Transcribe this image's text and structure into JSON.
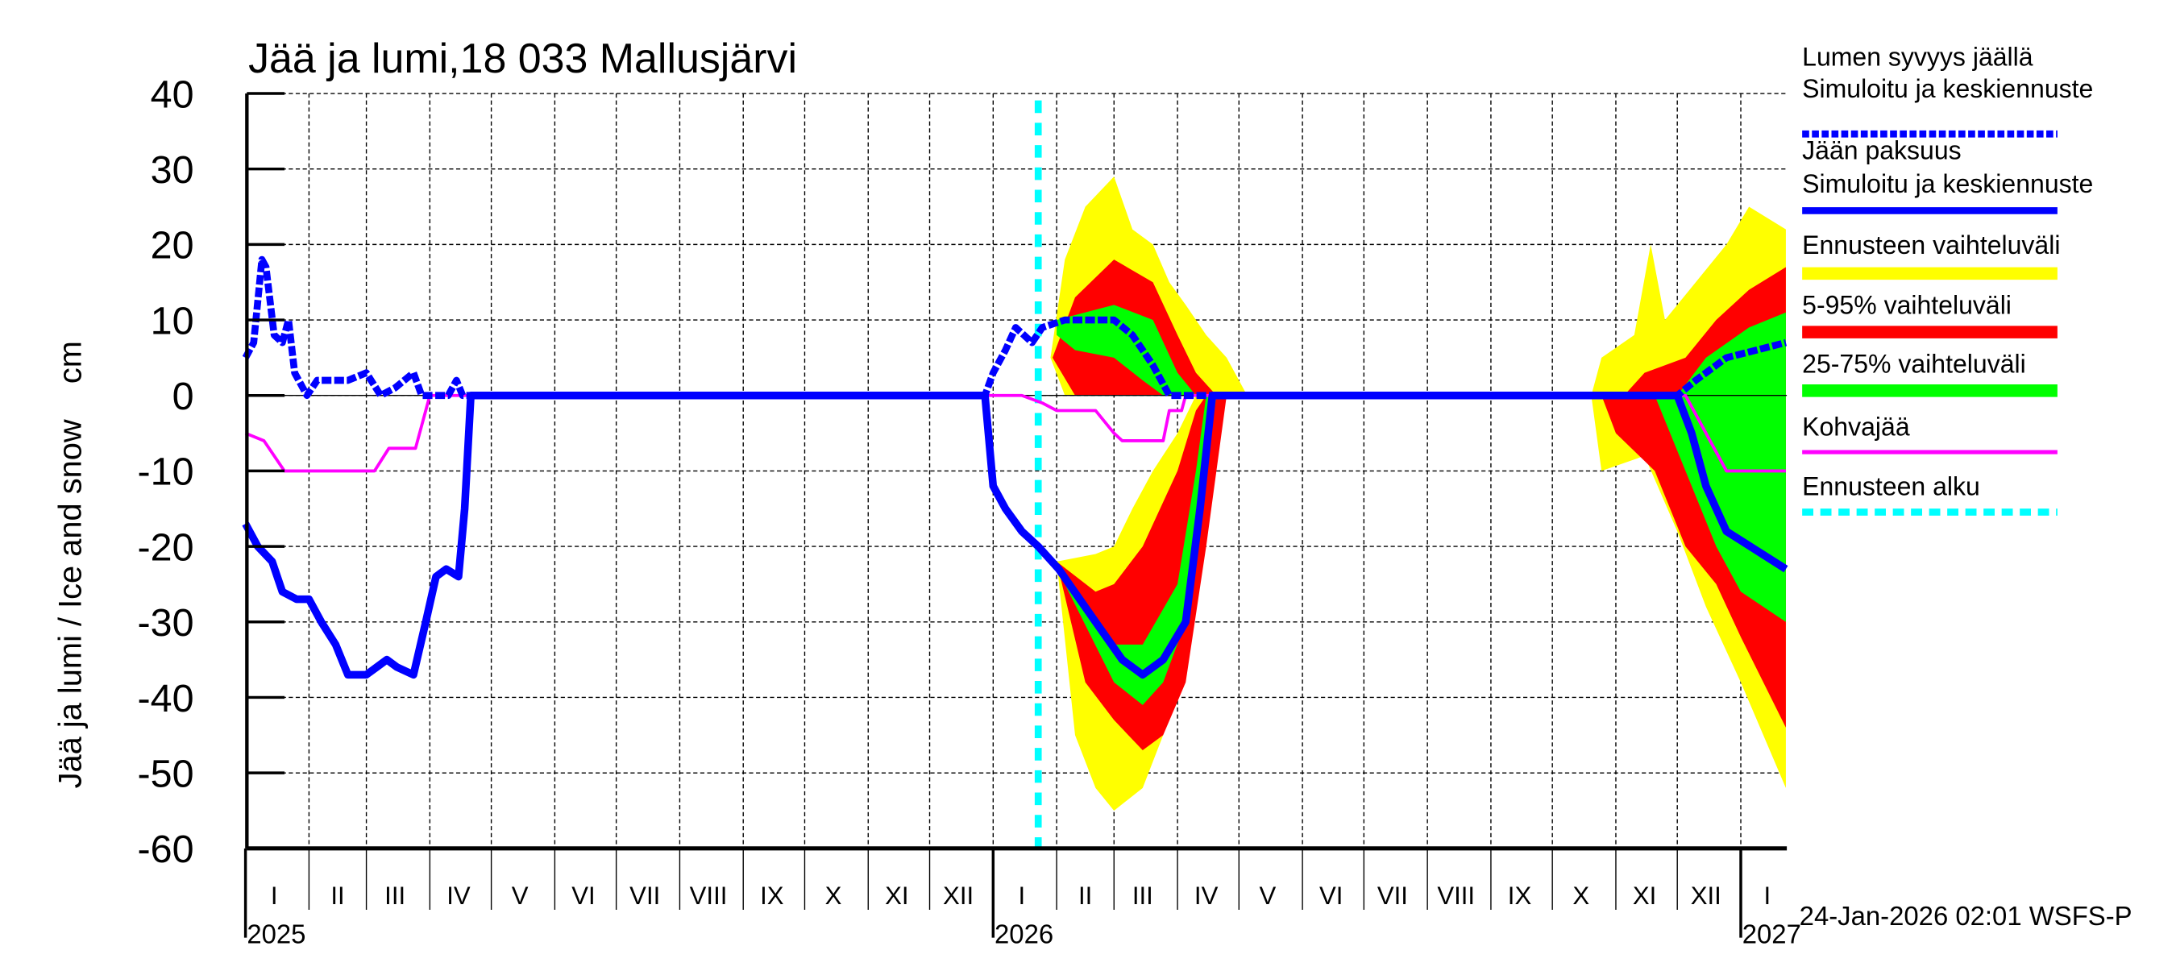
{
  "chart_data": {
    "type": "area",
    "title": "Jää ja lumi,18 033 Mallusjärvi",
    "ylabel": "Jää ja lumi / Ice and snow    cm",
    "ylim": [
      -60,
      40
    ],
    "yticks": [
      40,
      30,
      20,
      10,
      0,
      -10,
      -20,
      -30,
      -40,
      -50,
      -60
    ],
    "xlim": [
      "2025-01-01",
      "2027-01-23"
    ],
    "grid": true,
    "legend_position": "right",
    "months": [
      "I",
      "II",
      "III",
      "IV",
      "V",
      "VI",
      "VII",
      "VIII",
      "IX",
      "X",
      "XI",
      "XII"
    ],
    "year_labels": [
      "2025",
      "2026",
      "2027"
    ],
    "footer": "24-Jan-2026 02:01 WSFS-P",
    "forecast_start": "2026-01-23",
    "legend": [
      {
        "label1": "Lumen syvyys jäällä",
        "label2": "Simuloitu ja keskiennuste",
        "color": "#0000ff",
        "style": "dashed"
      },
      {
        "label1": "Jään paksuus",
        "label2": "Simuloitu ja keskiennuste",
        "color": "#0000ff",
        "style": "solid"
      },
      {
        "label1": "Ennusteen vaihteluväli",
        "color": "#ffff00",
        "style": "band"
      },
      {
        "label1": "5-95% vaihteluväli",
        "color": "#ff0000",
        "style": "band"
      },
      {
        "label1": "25-75% vaihteluväli",
        "color": "#00ff00",
        "style": "band"
      },
      {
        "label1": "Kohvajää",
        "color": "#ff00ff",
        "style": "thin"
      },
      {
        "label1": "Ennusteen alku",
        "color": "#00ffff",
        "style": "dashed"
      }
    ],
    "bands": [
      {
        "name": "Ennusteen vaihteluväli",
        "color": "#ffff00",
        "polygons": [
          {
            "upper": [
              [
                "2026-01-29",
                5
              ],
              [
                "2026-02-05",
                18
              ],
              [
                "2026-02-15",
                25
              ],
              [
                "2026-03-01",
                29
              ],
              [
                "2026-03-10",
                22
              ],
              [
                "2026-03-20",
                20
              ],
              [
                "2026-03-28",
                15
              ],
              [
                "2026-04-05",
                12
              ],
              [
                "2026-04-15",
                8
              ],
              [
                "2026-04-25",
                5
              ],
              [
                "2026-05-05",
                0
              ]
            ],
            "lower": [
              [
                "2026-01-29",
                5
              ],
              [
                "2026-02-05",
                0
              ],
              [
                "2026-05-05",
                0
              ]
            ]
          },
          {
            "upper": [
              [
                "2026-02-01",
                -22
              ],
              [
                "2026-02-20",
                -21
              ],
              [
                "2026-03-01",
                -20
              ],
              [
                "2026-03-10",
                -15
              ],
              [
                "2026-03-20",
                -10
              ],
              [
                "2026-04-01",
                -5
              ],
              [
                "2026-04-10",
                0
              ],
              [
                "2026-05-05",
                0
              ]
            ],
            "lower": [
              [
                "2026-02-01",
                -22
              ],
              [
                "2026-02-10",
                -45
              ],
              [
                "2026-02-20",
                -52
              ],
              [
                "2026-03-01",
                -55
              ],
              [
                "2026-03-15",
                -52
              ],
              [
                "2026-03-25",
                -45
              ],
              [
                "2026-04-05",
                -35
              ],
              [
                "2026-04-15",
                -15
              ],
              [
                "2026-04-25",
                0
              ],
              [
                "2026-05-05",
                0
              ]
            ]
          },
          {
            "upper": [
              [
                "2026-10-20",
                0
              ],
              [
                "2026-10-25",
                5
              ],
              [
                "2026-11-10",
                8
              ],
              [
                "2026-11-18",
                20
              ],
              [
                "2026-11-25",
                10
              ],
              [
                "2026-12-10",
                15
              ],
              [
                "2026-12-25",
                20
              ],
              [
                "2027-01-05",
                25
              ],
              [
                "2027-01-23",
                22
              ]
            ],
            "lower": [
              [
                "2026-10-20",
                0
              ],
              [
                "2026-10-25",
                -10
              ],
              [
                "2026-11-15",
                -8
              ],
              [
                "2026-12-01",
                -18
              ],
              [
                "2026-12-15",
                -28
              ],
              [
                "2027-01-01",
                -38
              ],
              [
                "2027-01-23",
                -52
              ]
            ]
          }
        ]
      },
      {
        "name": "5-95% vaihteluväli",
        "color": "#ff0000",
        "polygons": [
          {
            "upper": [
              [
                "2026-01-30",
                5
              ],
              [
                "2026-02-10",
                13
              ],
              [
                "2026-03-01",
                18
              ],
              [
                "2026-03-20",
                15
              ],
              [
                "2026-04-01",
                8
              ],
              [
                "2026-04-10",
                3
              ],
              [
                "2026-04-20",
                0
              ]
            ],
            "lower": [
              [
                "2026-01-30",
                5
              ],
              [
                "2026-02-10",
                0
              ],
              [
                "2026-04-20",
                0
              ]
            ]
          },
          {
            "upper": [
              [
                "2026-02-01",
                -22
              ],
              [
                "2026-02-20",
                -26
              ],
              [
                "2026-03-01",
                -25
              ],
              [
                "2026-03-15",
                -20
              ],
              [
                "2026-04-01",
                -10
              ],
              [
                "2026-04-10",
                -2
              ],
              [
                "2026-04-15",
                0
              ],
              [
                "2026-04-25",
                0
              ]
            ],
            "lower": [
              [
                "2026-02-01",
                -22
              ],
              [
                "2026-02-15",
                -38
              ],
              [
                "2026-03-01",
                -43
              ],
              [
                "2026-03-15",
                -47
              ],
              [
                "2026-03-25",
                -45
              ],
              [
                "2026-04-05",
                -38
              ],
              [
                "2026-04-15",
                -20
              ],
              [
                "2026-04-25",
                0
              ]
            ]
          },
          {
            "upper": [
              [
                "2026-10-25",
                0
              ],
              [
                "2026-11-05",
                0
              ],
              [
                "2026-11-15",
                3
              ],
              [
                "2026-12-05",
                5
              ],
              [
                "2026-12-20",
                10
              ],
              [
                "2027-01-05",
                14
              ],
              [
                "2027-01-23",
                17
              ]
            ],
            "lower": [
              [
                "2026-10-25",
                0
              ],
              [
                "2026-11-01",
                -5
              ],
              [
                "2026-11-20",
                -10
              ],
              [
                "2026-12-05",
                -20
              ],
              [
                "2026-12-20",
                -25
              ],
              [
                "2027-01-01",
                -32
              ],
              [
                "2027-01-23",
                -44
              ]
            ]
          }
        ]
      },
      {
        "name": "25-75% vaihteluväli",
        "color": "#00ff00",
        "polygons": [
          {
            "upper": [
              [
                "2026-02-01",
                10
              ],
              [
                "2026-03-01",
                12
              ],
              [
                "2026-03-20",
                10
              ],
              [
                "2026-04-01",
                3
              ],
              [
                "2026-04-10",
                0
              ]
            ],
            "lower": [
              [
                "2026-02-01",
                8
              ],
              [
                "2026-02-10",
                6
              ],
              [
                "2026-03-01",
                5
              ],
              [
                "2026-03-15",
                2
              ],
              [
                "2026-03-25",
                0
              ],
              [
                "2026-04-10",
                0
              ]
            ]
          },
          {
            "upper": [
              [
                "2026-02-05",
                -25
              ],
              [
                "2026-03-01",
                -33
              ],
              [
                "2026-03-15",
                -33
              ],
              [
                "2026-04-01",
                -25
              ],
              [
                "2026-04-10",
                -10
              ],
              [
                "2026-04-15",
                0
              ],
              [
                "2026-04-20",
                0
              ]
            ],
            "lower": [
              [
                "2026-02-05",
                -25
              ],
              [
                "2026-03-01",
                -38
              ],
              [
                "2026-03-15",
                -41
              ],
              [
                "2026-03-25",
                -38
              ],
              [
                "2026-04-05",
                -30
              ],
              [
                "2026-04-15",
                -10
              ],
              [
                "2026-04-20",
                0
              ]
            ]
          },
          {
            "upper": [
              [
                "2026-11-20",
                0
              ],
              [
                "2026-12-01",
                0
              ],
              [
                "2026-12-15",
                5
              ],
              [
                "2027-01-05",
                9
              ],
              [
                "2027-01-23",
                11
              ]
            ],
            "lower": [
              [
                "2026-11-20",
                0
              ],
              [
                "2026-12-05",
                -10
              ],
              [
                "2026-12-20",
                -20
              ],
              [
                "2027-01-01",
                -26
              ],
              [
                "2027-01-23",
                -30
              ]
            ]
          }
        ]
      }
    ],
    "series": [
      {
        "name": "Lumen syvyys jäällä",
        "color": "#0000ff",
        "style": "dashed",
        "points": [
          [
            "2025-01-01",
            5
          ],
          [
            "2025-01-05",
            7
          ],
          [
            "2025-01-09",
            18
          ],
          [
            "2025-01-11",
            17
          ],
          [
            "2025-01-15",
            8
          ],
          [
            "2025-01-19",
            7
          ],
          [
            "2025-01-22",
            10
          ],
          [
            "2025-01-25",
            3
          ],
          [
            "2025-01-31",
            0
          ],
          [
            "2025-02-05",
            2
          ],
          [
            "2025-02-20",
            2
          ],
          [
            "2025-03-01",
            3
          ],
          [
            "2025-03-08",
            0
          ],
          [
            "2025-03-15",
            1
          ],
          [
            "2025-03-24",
            3
          ],
          [
            "2025-03-28",
            0
          ],
          [
            "2025-04-10",
            0
          ],
          [
            "2025-04-14",
            2
          ],
          [
            "2025-04-17",
            0
          ],
          [
            "2025-12-28",
            0
          ],
          [
            "2026-01-01",
            3
          ],
          [
            "2026-01-07",
            6
          ],
          [
            "2026-01-12",
            9
          ],
          [
            "2026-01-20",
            7
          ],
          [
            "2026-01-25",
            9
          ],
          [
            "2026-02-05",
            10
          ],
          [
            "2026-03-01",
            10
          ],
          [
            "2026-03-10",
            8
          ],
          [
            "2026-03-20",
            4
          ],
          [
            "2026-03-28",
            0
          ],
          [
            "2026-12-01",
            0
          ],
          [
            "2026-12-10",
            2
          ],
          [
            "2026-12-25",
            5
          ],
          [
            "2027-01-23",
            7
          ]
        ]
      },
      {
        "name": "Jään paksuus",
        "color": "#0000ff",
        "style": "solid",
        "points": [
          [
            "2025-01-01",
            -17
          ],
          [
            "2025-01-07",
            -20
          ],
          [
            "2025-01-14",
            -22
          ],
          [
            "2025-01-19",
            -26
          ],
          [
            "2025-01-26",
            -27
          ],
          [
            "2025-02-01",
            -27
          ],
          [
            "2025-02-07",
            -30
          ],
          [
            "2025-02-14",
            -33
          ],
          [
            "2025-02-20",
            -37
          ],
          [
            "2025-03-01",
            -37
          ],
          [
            "2025-03-06",
            -36
          ],
          [
            "2025-03-11",
            -35
          ],
          [
            "2025-03-16",
            -36
          ],
          [
            "2025-03-24",
            -37
          ],
          [
            "2025-03-30",
            -30
          ],
          [
            "2025-04-04",
            -24
          ],
          [
            "2025-04-09",
            -23
          ],
          [
            "2025-04-15",
            -24
          ],
          [
            "2025-04-18",
            -15
          ],
          [
            "2025-04-21",
            0
          ],
          [
            "2025-12-28",
            0
          ],
          [
            "2026-01-01",
            -12
          ],
          [
            "2026-01-07",
            -15
          ],
          [
            "2026-01-15",
            -18
          ],
          [
            "2026-01-23",
            -20
          ],
          [
            "2026-02-02",
            -23
          ],
          [
            "2026-02-20",
            -30
          ],
          [
            "2026-03-05",
            -35
          ],
          [
            "2026-03-15",
            -37
          ],
          [
            "2026-03-25",
            -35
          ],
          [
            "2026-04-05",
            -30
          ],
          [
            "2026-04-12",
            -15
          ],
          [
            "2026-04-18",
            0
          ],
          [
            "2026-12-01",
            0
          ],
          [
            "2026-12-08",
            -5
          ],
          [
            "2026-12-15",
            -12
          ],
          [
            "2026-12-25",
            -18
          ],
          [
            "2027-01-23",
            -23
          ]
        ]
      },
      {
        "name": "Kohvajää",
        "color": "#ff00ff",
        "style": "thin",
        "points": [
          [
            "2025-01-01",
            -5
          ],
          [
            "2025-01-10",
            -6
          ],
          [
            "2025-01-20",
            -10
          ],
          [
            "2025-03-05",
            -10
          ],
          [
            "2025-03-12",
            -7
          ],
          [
            "2025-03-25",
            -7
          ],
          [
            "2025-04-01",
            0
          ],
          [
            "2026-01-15",
            0
          ],
          [
            "2026-01-25",
            -1
          ],
          [
            "2026-02-01",
            -2
          ],
          [
            "2026-02-20",
            -2
          ],
          [
            "2026-03-01",
            -5
          ],
          [
            "2026-03-05",
            -6
          ],
          [
            "2026-03-25",
            -6
          ],
          [
            "2026-03-28",
            -2
          ],
          [
            "2026-04-03",
            -2
          ],
          [
            "2026-04-05",
            0
          ],
          [
            "2026-12-05",
            0
          ],
          [
            "2026-12-15",
            -5
          ],
          [
            "2026-12-25",
            -10
          ],
          [
            "2027-01-23",
            -10
          ]
        ]
      }
    ]
  }
}
